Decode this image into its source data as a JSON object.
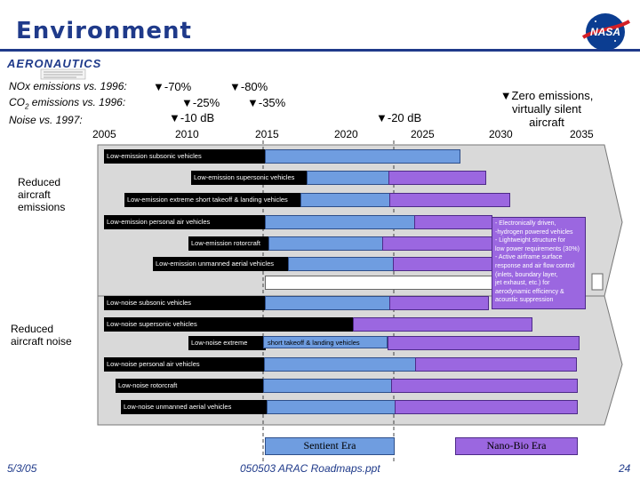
{
  "header": {
    "title": "Environment",
    "logo_text": "NASA",
    "aero_logo_text": "AERONAUTICS"
  },
  "targets": {
    "nox_label": "NOx emissions vs. 1996:",
    "co2_label_pre": "CO",
    "co2_label_sub": "2",
    "co2_label_post": " emissions vs. 1996:",
    "noise_label": "Noise vs. 1997:",
    "nox_2010": "▼-70%",
    "nox_2015": "▼-80%",
    "co2_2010": "▼-25%",
    "co2_2015": "▼-35%",
    "noise_2010": "▼-10 dB",
    "noise_2020": "▼-20 dB",
    "zero_line1": "▼Zero emissions,",
    "zero_line2": "virtually silent",
    "zero_line3": "aircraft"
  },
  "years": [
    "2005",
    "2010",
    "2015",
    "2020",
    "2025",
    "2030",
    "2035"
  ],
  "groups": {
    "emissions_line1": "Reduced",
    "emissions_line2": "aircraft",
    "emissions_line3": "emissions",
    "noise_line1": "Reduced",
    "noise_line2": "aircraft noise"
  },
  "bars": [
    {
      "label": "Low-emission subsonic vehicles"
    },
    {
      "label": "Low-emission supersonic vehicles"
    },
    {
      "label": "Low-emission extreme short takeoff & landing vehicles"
    },
    {
      "label": "Low-emission personal air vehicles"
    },
    {
      "label": "Low-emission rotorcraft"
    },
    {
      "label": "Low-emission unmanned aerial vehicles"
    },
    {
      "label": "Low-noise subsonic vehicles"
    },
    {
      "label": "Low-noise supersonic vehicles"
    },
    {
      "label": "Low-noise extreme"
    },
    {
      "label": "short takeoff & landing vehicles"
    },
    {
      "label": "Low-noise personal air vehicles"
    },
    {
      "label": "Low-noise rotorcraft"
    },
    {
      "label": "Low-noise unmanned aerial vehicles"
    }
  ],
  "note": {
    "lines": [
      "- Electronically driven,",
      "-hydrogen powered vehicles",
      "- Lightweight structure for",
      "low power requirements (30%)",
      "- Active airframe surface",
      "response and air flow control",
      "(inlets, boundary layer,",
      "jet exhaust, etc.) for",
      "aerodynamic efficiency &",
      "acoustic suppression"
    ]
  },
  "eras": {
    "sentient": "Sentient Era",
    "nanobio": "Nano-Bio Era"
  },
  "footer": {
    "date": "5/3/05",
    "file": "050503 ARAC Roadmaps.ppt",
    "page": "24"
  },
  "colors": {
    "title": "#1f3a8a",
    "sentient_bar": "#6f9de0",
    "nanobio_bar": "#9b67e0",
    "arrow": "#d9d9d9"
  }
}
